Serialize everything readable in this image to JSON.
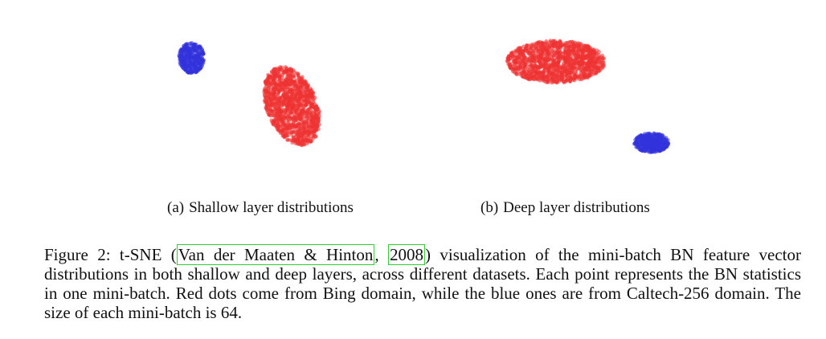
{
  "chart_data": [
    {
      "type": "scatter",
      "subfigure_label": "(a)",
      "title": "Shallow layer distributions",
      "xlabel": "",
      "ylabel": "",
      "axes_visible": false,
      "grid": false,
      "series": [
        {
          "name": "Bing",
          "color": "#ee3333",
          "count": 1300,
          "cluster": {
            "center": [
              0.58,
              0.55
            ],
            "spread": [
              0.22,
              0.42
            ],
            "tilt": -0.28
          }
        },
        {
          "name": "Caltech-256",
          "color": "#3333dd",
          "count": 380,
          "cluster": {
            "center": [
              0.15,
              0.3
            ],
            "spread": [
              0.11,
              0.16
            ],
            "tilt": 0.0
          }
        }
      ]
    },
    {
      "type": "scatter",
      "subfigure_label": "(b)",
      "title": "Deep layer distributions",
      "xlabel": "",
      "ylabel": "",
      "axes_visible": false,
      "grid": false,
      "series": [
        {
          "name": "Bing",
          "color": "#ee3333",
          "count": 1300,
          "cluster": {
            "center": [
              0.42,
              0.32
            ],
            "spread": [
              0.42,
              0.22
            ],
            "tilt": 0.0
          }
        },
        {
          "name": "Caltech-256",
          "color": "#3333dd",
          "count": 420,
          "cluster": {
            "center": [
              0.83,
              0.74
            ],
            "spread": [
              0.15,
              0.1
            ],
            "tilt": 0.0
          }
        }
      ]
    }
  ],
  "caption": {
    "prefix": "Figure 2: t-SNE (",
    "cite_authors": "Van der Maaten & Hinton",
    "cite_sep": ", ",
    "cite_year": "2008",
    "suffix": ") visualization of the mini-batch BN feature vector distributions in both shallow and deep layers, across different datasets.  Each point represents the BN statistics in one mini-batch.  Red dots come from Bing domain, while the blue ones are from Caltech-256 domain. The size of each mini-batch is 64."
  }
}
